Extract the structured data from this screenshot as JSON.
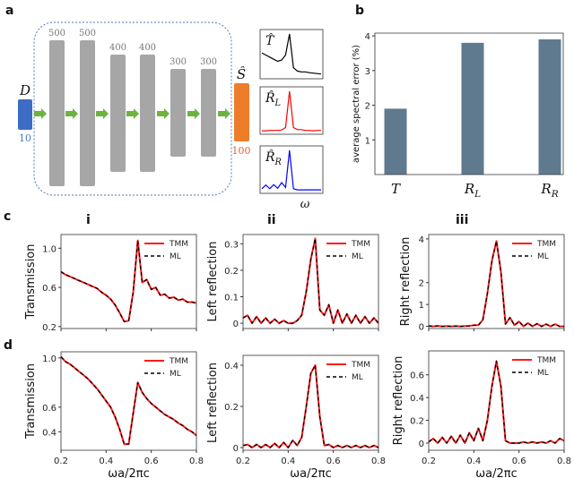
{
  "panel_labels": {
    "a": "a",
    "b": "b",
    "c": "c",
    "d": "d"
  },
  "column_labels": [
    "i",
    "ii",
    "iii"
  ],
  "network": {
    "input_label": "D",
    "input_size": "10",
    "layer_sizes": [
      "500",
      "500",
      "400",
      "400",
      "300",
      "300"
    ],
    "output_label": "Ŝ",
    "output_size": "100",
    "omega_label": "ω",
    "colors": {
      "input": "#3d6cc4",
      "layer": "#a6a6a6",
      "output": "#ee7d2a",
      "arrow": "#6db33f",
      "frame": "#4a7ab8",
      "input_text": "#4a7ab8",
      "output_text": "#e0603a"
    }
  },
  "colors": {
    "tmm": "#ff1a1a",
    "ml": "#000000",
    "bar": "#5f7a8e"
  },
  "chart_data": [
    {
      "id": "thumb-T",
      "type": "line",
      "label": {
        "main": "T̂",
        "sub": ""
      },
      "color": "#000000",
      "values": [
        0.55,
        0.5,
        0.45,
        0.4,
        0.35,
        0.38,
        0.5,
        1.0,
        0.2,
        0.12,
        0.1,
        0.1,
        0.08,
        0.07,
        0.06,
        0.05
      ]
    },
    {
      "id": "thumb-RL",
      "type": "line",
      "label": {
        "main": "R̂",
        "sub": "L"
      },
      "color": "#ff0000",
      "values": [
        0.02,
        0.02,
        0.03,
        0.03,
        0.03,
        0.04,
        0.1,
        1.0,
        0.1,
        0.05,
        0.05,
        0.03,
        0.03,
        0.02,
        0.03,
        0.03
      ]
    },
    {
      "id": "thumb-RR",
      "type": "line",
      "label": {
        "main": "R̂",
        "sub": "R"
      },
      "color": "#0000ff",
      "values": [
        0.05,
        0.14,
        0.05,
        0.15,
        0.06,
        0.2,
        0.08,
        1.0,
        0.05,
        0.02,
        0.02,
        0.02,
        0.02,
        0.02,
        0.02,
        0.02
      ]
    },
    {
      "id": "b",
      "type": "bar",
      "categories": [
        {
          "main": "T",
          "sub": ""
        },
        {
          "main": "R",
          "sub": "L"
        },
        {
          "main": "R",
          "sub": "R"
        }
      ],
      "values": [
        1.9,
        3.8,
        3.9
      ],
      "ylabel": "average spectral error (%)",
      "yticks": [
        1,
        2,
        3,
        4
      ],
      "ylim": [
        0,
        4.08
      ]
    },
    {
      "id": "c-i",
      "type": "line",
      "ylabel": "Transmission",
      "xlabel": "",
      "xlim": [
        0.2,
        0.8
      ],
      "ylim": [
        0.18,
        1.14
      ],
      "yticks": [
        0.2,
        0.6,
        1.0
      ],
      "yticklabels": [
        "0.2",
        "0.6",
        "1.0"
      ],
      "xticks": [
        0.2,
        0.4,
        0.6,
        0.8
      ],
      "xticklabels": [],
      "x": [
        0.2,
        0.22,
        0.24,
        0.26,
        0.28,
        0.3,
        0.32,
        0.34,
        0.36,
        0.38,
        0.4,
        0.42,
        0.44,
        0.46,
        0.48,
        0.5,
        0.52,
        0.54,
        0.56,
        0.58,
        0.6,
        0.62,
        0.64,
        0.66,
        0.68,
        0.7,
        0.72,
        0.74,
        0.76,
        0.78,
        0.8
      ],
      "series": [
        {
          "name": "TMM",
          "values": [
            0.76,
            0.73,
            0.71,
            0.69,
            0.67,
            0.65,
            0.63,
            0.61,
            0.59,
            0.55,
            0.52,
            0.48,
            0.42,
            0.34,
            0.25,
            0.26,
            0.55,
            1.08,
            0.65,
            0.68,
            0.58,
            0.6,
            0.52,
            0.53,
            0.49,
            0.5,
            0.47,
            0.48,
            0.45,
            0.45,
            0.44
          ]
        },
        {
          "name": "ML",
          "values": [
            0.76,
            0.73,
            0.71,
            0.69,
            0.67,
            0.65,
            0.63,
            0.61,
            0.59,
            0.55,
            0.52,
            0.48,
            0.42,
            0.34,
            0.25,
            0.26,
            0.55,
            1.08,
            0.65,
            0.68,
            0.58,
            0.6,
            0.52,
            0.53,
            0.49,
            0.5,
            0.47,
            0.48,
            0.45,
            0.45,
            0.44
          ]
        }
      ],
      "legend": "top-right"
    },
    {
      "id": "c-ii",
      "type": "line",
      "ylabel": "Left reflection",
      "xlabel": "",
      "xlim": [
        0.2,
        0.8
      ],
      "ylim": [
        -0.02,
        0.335
      ],
      "yticks": [
        0,
        0.1,
        0.2,
        0.3
      ],
      "yticklabels": [
        "0",
        "0.1",
        "0.2",
        "0.3"
      ],
      "xticks": [
        0.2,
        0.4,
        0.6,
        0.8
      ],
      "xticklabels": [],
      "x": [
        0.2,
        0.22,
        0.24,
        0.26,
        0.28,
        0.3,
        0.32,
        0.34,
        0.36,
        0.38,
        0.4,
        0.42,
        0.44,
        0.46,
        0.48,
        0.5,
        0.52,
        0.54,
        0.56,
        0.58,
        0.6,
        0.62,
        0.64,
        0.66,
        0.68,
        0.7,
        0.72,
        0.74,
        0.76,
        0.78,
        0.8
      ],
      "series": [
        {
          "name": "TMM",
          "values": [
            0.02,
            0.03,
            0.0,
            0.025,
            0.0,
            0.02,
            0.0,
            0.015,
            0.0,
            0.01,
            0.0,
            0.0,
            0.01,
            0.03,
            0.12,
            0.24,
            0.32,
            0.05,
            0.03,
            0.07,
            0.0,
            0.05,
            0.0,
            0.035,
            0.0,
            0.03,
            0.0,
            0.025,
            0.0,
            0.02,
            0.0
          ]
        },
        {
          "name": "ML",
          "values": [
            0.02,
            0.03,
            0.0,
            0.025,
            0.0,
            0.02,
            0.0,
            0.015,
            0.0,
            0.01,
            0.0,
            0.0,
            0.01,
            0.03,
            0.12,
            0.24,
            0.32,
            0.05,
            0.03,
            0.07,
            0.0,
            0.05,
            0.0,
            0.035,
            0.0,
            0.03,
            0.0,
            0.025,
            0.0,
            0.02,
            0.0
          ]
        }
      ],
      "legend": "top-right"
    },
    {
      "id": "c-iii",
      "type": "line",
      "ylabel": "Right reflection",
      "xlabel": "",
      "xlim": [
        0.2,
        0.8
      ],
      "ylim": [
        -0.1,
        4.2
      ],
      "yticks": [
        0,
        1,
        2,
        4
      ],
      "yticklabels": [
        "0",
        "1",
        "2",
        "4"
      ],
      "xticks": [
        0.2,
        0.4,
        0.6,
        0.8
      ],
      "xticklabels": [],
      "x": [
        0.2,
        0.22,
        0.24,
        0.26,
        0.28,
        0.3,
        0.32,
        0.34,
        0.36,
        0.38,
        0.4,
        0.42,
        0.44,
        0.46,
        0.48,
        0.5,
        0.52,
        0.54,
        0.56,
        0.58,
        0.6,
        0.62,
        0.64,
        0.66,
        0.68,
        0.7,
        0.72,
        0.74,
        0.76,
        0.78,
        0.8
      ],
      "series": [
        {
          "name": "TMM",
          "values": [
            0.02,
            0.0,
            0.02,
            0.0,
            0.01,
            0.0,
            0.01,
            0.0,
            0.01,
            0.02,
            0.05,
            0.05,
            0.3,
            1.5,
            3.0,
            3.9,
            2.5,
            0.1,
            0.4,
            0.05,
            0.22,
            0.0,
            0.15,
            0.0,
            0.12,
            0.0,
            0.1,
            0.0,
            0.1,
            0.0,
            0.0
          ]
        },
        {
          "name": "ML",
          "values": [
            0.02,
            0.0,
            0.02,
            0.0,
            0.01,
            0.0,
            0.01,
            0.0,
            0.01,
            0.02,
            0.05,
            0.05,
            0.3,
            1.5,
            3.0,
            3.9,
            2.5,
            0.1,
            0.4,
            0.05,
            0.22,
            0.0,
            0.15,
            0.0,
            0.12,
            0.0,
            0.1,
            0.0,
            0.1,
            0.0,
            0.0
          ]
        }
      ],
      "legend": "top-right"
    },
    {
      "id": "d-i",
      "type": "line",
      "ylabel": "Transmission",
      "xlabel": "ωa/2πc",
      "xlim": [
        0.2,
        0.8
      ],
      "ylim": [
        0.25,
        1.05
      ],
      "yticks": [
        0.4,
        0.6,
        1.0
      ],
      "yticklabels": [
        "0.4",
        "0.6",
        "1.0"
      ],
      "xticks": [
        0.2,
        0.4,
        0.6,
        0.8
      ],
      "xticklabels": [
        "0.2",
        "0.4",
        "0.6",
        "0.8"
      ],
      "x": [
        0.2,
        0.22,
        0.24,
        0.26,
        0.28,
        0.3,
        0.32,
        0.34,
        0.36,
        0.38,
        0.4,
        0.42,
        0.44,
        0.46,
        0.48,
        0.5,
        0.52,
        0.54,
        0.56,
        0.58,
        0.6,
        0.62,
        0.64,
        0.66,
        0.68,
        0.7,
        0.72,
        0.74,
        0.76,
        0.78,
        0.8
      ],
      "series": [
        {
          "name": "TMM",
          "values": [
            1.01,
            0.97,
            0.95,
            0.92,
            0.89,
            0.86,
            0.83,
            0.79,
            0.75,
            0.7,
            0.65,
            0.6,
            0.52,
            0.42,
            0.3,
            0.3,
            0.55,
            0.8,
            0.72,
            0.67,
            0.63,
            0.6,
            0.57,
            0.54,
            0.52,
            0.5,
            0.47,
            0.45,
            0.42,
            0.4,
            0.37
          ]
        },
        {
          "name": "ML",
          "values": [
            1.01,
            0.97,
            0.95,
            0.92,
            0.89,
            0.86,
            0.83,
            0.79,
            0.75,
            0.7,
            0.65,
            0.6,
            0.52,
            0.42,
            0.3,
            0.3,
            0.55,
            0.8,
            0.72,
            0.67,
            0.63,
            0.6,
            0.57,
            0.54,
            0.52,
            0.5,
            0.47,
            0.45,
            0.42,
            0.4,
            0.37
          ]
        }
      ],
      "legend": "top-right"
    },
    {
      "id": "d-ii",
      "type": "line",
      "ylabel": "Left reflection",
      "xlabel": "ωa/2πc",
      "xlim": [
        0.2,
        0.8
      ],
      "ylim": [
        -0.013,
        0.448
      ],
      "yticks": [
        0,
        0.2,
        0.4
      ],
      "yticklabels": [
        "0",
        "0.2",
        "0.4"
      ],
      "xticks": [
        0.2,
        0.4,
        0.6,
        0.8
      ],
      "xticklabels": [
        "0.2",
        "0.4",
        "0.6",
        "0.8"
      ],
      "x": [
        0.2,
        0.22,
        0.24,
        0.26,
        0.28,
        0.3,
        0.32,
        0.34,
        0.36,
        0.38,
        0.4,
        0.42,
        0.44,
        0.46,
        0.48,
        0.5,
        0.52,
        0.54,
        0.56,
        0.58,
        0.6,
        0.62,
        0.64,
        0.66,
        0.68,
        0.7,
        0.72,
        0.74,
        0.76,
        0.78,
        0.8
      ],
      "series": [
        {
          "name": "TMM",
          "values": [
            0.01,
            0.015,
            0.0,
            0.015,
            0.0,
            0.015,
            0.0,
            0.02,
            0.0,
            0.025,
            0.0,
            0.035,
            0.01,
            0.05,
            0.2,
            0.36,
            0.4,
            0.15,
            0.01,
            0.015,
            0.0,
            0.01,
            0.0,
            0.01,
            0.0,
            0.01,
            0.0,
            0.01,
            0.0,
            0.01,
            0.0
          ]
        },
        {
          "name": "ML",
          "values": [
            0.01,
            0.015,
            0.0,
            0.015,
            0.0,
            0.015,
            0.0,
            0.02,
            0.0,
            0.025,
            0.0,
            0.035,
            0.01,
            0.05,
            0.2,
            0.36,
            0.4,
            0.15,
            0.01,
            0.015,
            0.0,
            0.01,
            0.0,
            0.01,
            0.0,
            0.01,
            0.0,
            0.01,
            0.0,
            0.01,
            0.0
          ]
        }
      ],
      "legend": "top-right"
    },
    {
      "id": "d-iii",
      "type": "line",
      "ylabel": "Right reflection",
      "xlabel": "ωa/2πc",
      "xlim": [
        0.2,
        0.8
      ],
      "ylim": [
        -0.063,
        0.81
      ],
      "yticks": [
        0,
        0.2,
        0.4,
        0.6
      ],
      "yticklabels": [
        "0",
        "0.2",
        "0.4",
        "0.6"
      ],
      "xticks": [
        0.2,
        0.4,
        0.6,
        0.8
      ],
      "xticklabels": [
        "0.2",
        "0.4",
        "0.6",
        "0.8"
      ],
      "x": [
        0.2,
        0.22,
        0.24,
        0.26,
        0.28,
        0.3,
        0.32,
        0.34,
        0.36,
        0.38,
        0.4,
        0.42,
        0.44,
        0.46,
        0.48,
        0.5,
        0.52,
        0.54,
        0.56,
        0.58,
        0.6,
        0.62,
        0.64,
        0.66,
        0.68,
        0.7,
        0.72,
        0.74,
        0.76,
        0.78,
        0.8
      ],
      "series": [
        {
          "name": "TMM",
          "values": [
            0.01,
            0.04,
            0.0,
            0.05,
            0.0,
            0.06,
            0.0,
            0.07,
            0.0,
            0.09,
            0.02,
            0.13,
            0.02,
            0.2,
            0.5,
            0.72,
            0.5,
            0.02,
            0.0,
            0.0,
            0.0,
            0.01,
            0.0,
            0.01,
            0.0,
            0.01,
            0.0,
            0.02,
            0.0,
            0.04,
            0.02
          ]
        },
        {
          "name": "ML",
          "values": [
            0.01,
            0.04,
            0.0,
            0.05,
            0.0,
            0.06,
            0.0,
            0.07,
            0.0,
            0.09,
            0.02,
            0.13,
            0.02,
            0.2,
            0.5,
            0.72,
            0.5,
            0.02,
            0.0,
            0.0,
            0.0,
            0.01,
            0.0,
            0.01,
            0.0,
            0.01,
            0.0,
            0.02,
            0.0,
            0.04,
            0.02
          ]
        }
      ],
      "legend": "top-right"
    }
  ]
}
